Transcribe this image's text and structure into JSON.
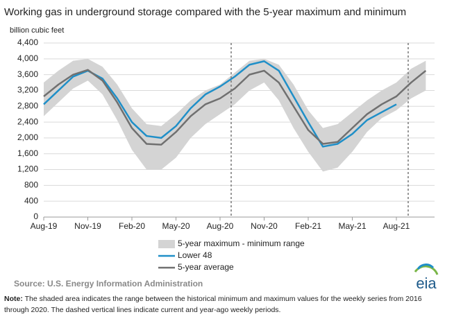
{
  "chart_data": {
    "type": "line",
    "title": "Working gas in underground  storage compared with the 5-year maximum  and minimum",
    "y_axis_label": "billion cubic feet",
    "categories": [
      "Aug-19",
      null,
      null,
      "Nov-19",
      null,
      null,
      "Feb-20",
      null,
      null,
      "May-20",
      null,
      null,
      "Aug-20",
      null,
      null,
      "Nov-20",
      null,
      null,
      "Feb-21",
      null,
      null,
      "May-21",
      null,
      null,
      "Aug-21",
      null,
      null
    ],
    "series": [
      {
        "name": "5-year maximum - minimum range",
        "color": "#d4d4d4",
        "max": [
          3400,
          3700,
          3950,
          4000,
          3800,
          3350,
          2750,
          2350,
          2300,
          2600,
          2950,
          3200,
          3350,
          3650,
          3950,
          4000,
          3850,
          3350,
          2700,
          2250,
          2350,
          2650,
          2950,
          3200,
          3400,
          3750,
          3950
        ],
        "min": [
          2550,
          2900,
          3250,
          3450,
          3100,
          2450,
          1700,
          1200,
          1200,
          1500,
          2000,
          2350,
          2600,
          2850,
          3200,
          3400,
          2950,
          2250,
          1650,
          1150,
          1250,
          1650,
          2150,
          2500,
          2700,
          3000,
          3200
        ]
      },
      {
        "name": "Lower 48",
        "color": "#1f8fc8",
        "values": [
          2850,
          3200,
          3550,
          3700,
          3500,
          3000,
          2400,
          2050,
          2000,
          2300,
          2750,
          3100,
          3300,
          3550,
          3850,
          3940,
          3700,
          3050,
          2400,
          1780,
          1850,
          2100,
          2450,
          2650,
          2850,
          null,
          null
        ]
      },
      {
        "name": "5-year average",
        "color": "#707070",
        "values": [
          3050,
          3350,
          3600,
          3720,
          3450,
          2900,
          2250,
          1850,
          1830,
          2150,
          2550,
          2850,
          3000,
          3250,
          3600,
          3700,
          3400,
          2800,
          2200,
          1850,
          1900,
          2250,
          2600,
          2850,
          3050,
          3400,
          3700
        ]
      }
    ],
    "ylim": [
      0,
      4400
    ],
    "yticks": [
      0,
      400,
      800,
      {
        "value": 1200,
        "label": "1,200"
      },
      {
        "value": 1600,
        "label": "1,600"
      },
      {
        "value": 2000,
        "label": "2,000"
      },
      {
        "value": 2400,
        "label": "2,400"
      },
      {
        "value": 2800,
        "label": "2,800"
      },
      {
        "value": 3200,
        "label": "3,200"
      },
      {
        "value": 3600,
        "label": "3,600"
      },
      {
        "value": 4000,
        "label": "4,000"
      },
      {
        "value": 4400,
        "label": "4,400"
      }
    ],
    "grid": true,
    "source": "Source:  U.S. Energy Information Administration",
    "note_label": "Note:",
    "note": "The shaded area indicates the range between the historical minimum and maximum values for the weekly series from 2016 through 2020. The dashed vertical lines indicate current and year-ago weekly periods.",
    "logo": "eia"
  }
}
